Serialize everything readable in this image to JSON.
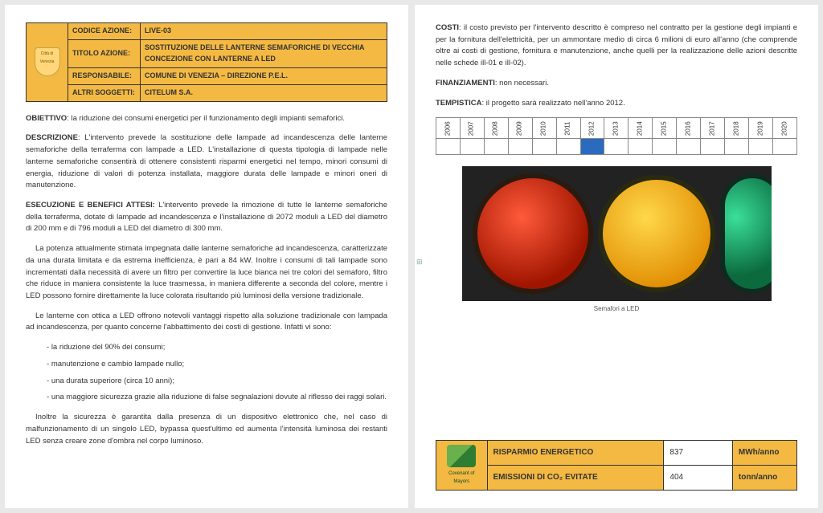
{
  "left": {
    "info": {
      "logo_alt": "Città di Venezia",
      "rows": [
        {
          "label": "CODICE AZIONE:",
          "value": "LIVE-03",
          "value_class": ""
        },
        {
          "label": "TITOLO AZIONE:",
          "value": "SOSTITUZIONE DELLE LANTERNE SEMAFORICHE DI VECCHIA CONCEZIONE CON LANTERNE A LED"
        },
        {
          "label": "RESPONSABILE:",
          "value": "COMUNE DI VENEZIA – DIREZIONE P.E.L."
        },
        {
          "label": "ALTRI SOGGETTI:",
          "value": "CITELUM S.A."
        }
      ]
    },
    "obiettivo_lead": "OBIETTIVO",
    "obiettivo": ": la riduzione dei consumi energetici per il funzionamento degli impianti semaforici.",
    "descrizione_lead": "DESCRIZIONE",
    "descrizione": ": L'intervento prevede la sostituzione delle lampade ad incandescenza delle lanterne semaforiche della terraferma con lampade a LED. L'installazione di questa tipologia di lampade nelle lanterne semaforiche consentirà di ottenere consistenti risparmi energetici nel tempo, minori consumi di energia, riduzione di valori di potenza installata, maggiore durata delle lampade e minori oneri di manutenzione.",
    "esecuzione_lead": "ESECUZIONE E BENEFICI ATTESI:",
    "esecuzione_p1": " L'intervento prevede la rimozione di tutte le lanterne semaforiche della terraferma, dotate di lampade ad incandescenza e l'installazione di 2072 moduli a LED del diametro di 200 mm e di 796 moduli a LED del diametro di 300 mm.",
    "esecuzione_p2": "La potenza attualmente stimata impegnata dalle lanterne semaforiche ad incandescenza, caratterizzate da una durata limitata e da estrema inefficienza, è pari a 84 kW. Inoltre i consumi di tali lampade sono incrementati dalla necessità di avere un filtro per convertire la luce bianca nei tre colori del semaforo, filtro che riduce in maniera consistente la luce trasmessa, in maniera differente a seconda del colore, mentre i LED possono fornire direttamente la luce colorata risultando più luminosi della versione tradizionale.",
    "esecuzione_p3": "Le lanterne con ottica a LED offrono notevoli vantaggi rispetto alla soluzione tradizionale con lampada ad incandescenza, per quanto concerne l'abbattimento dei costi di gestione. Infatti vi sono:",
    "bullets": [
      "la riduzione del 90% dei consumi;",
      "manutenzione e cambio lampade nullo;",
      "una durata superiore (circa 10 anni);",
      "una maggiore sicurezza grazie alla riduzione di false segnalazioni dovute al riflesso dei raggi solari."
    ],
    "after_bullets": "Inoltre la sicurezza è garantita dalla presenza di un dispositivo elettronico che, nel caso di malfunzionamento di un singolo LED, bypassa quest'ultimo ed aumenta l'intensità luminosa dei restanti LED senza creare zone d'ombra nel corpo luminoso."
  },
  "right": {
    "costi_lead": "COSTI",
    "costi": ": il costo previsto per l'intervento descritto è compreso nel contratto per la gestione degli impianti e per la fornitura dell'elettricità, per un ammontare medio di circa 6 milioni di euro all'anno (che comprende oltre ai costi di gestione, fornitura e manutenzione, anche quelli per la realizzazione delle azioni descritte nelle schede ill-01 e ill-02).",
    "finanziamenti_lead": "FINANZIAMENTI",
    "finanziamenti": ": non necessari.",
    "tempistica_lead": "TEMPISTICA",
    "tempistica": ": il progetto sarà realizzato nell'anno 2012.",
    "timeline": {
      "years": [
        "2006",
        "2007",
        "2008",
        "2009",
        "2010",
        "2011",
        "2012",
        "2013",
        "2014",
        "2015",
        "2016",
        "2017",
        "2018",
        "2019",
        "2020"
      ],
      "highlight_index": 6,
      "highlight_color": "#2a6bbf",
      "border_color": "#888888"
    },
    "photo_caption": "Semafori a LED",
    "photo": {
      "background": "#222222",
      "lamps": [
        {
          "type": "red",
          "color_inner": "#ff5a3a",
          "color_outer": "#a01500"
        },
        {
          "type": "yellow",
          "color_inner": "#ffd84a",
          "color_outer": "#e08a00"
        },
        {
          "type": "green",
          "color_inner": "#3adf9a",
          "color_outer": "#0b6a3e"
        }
      ]
    },
    "results": {
      "logo_alt": "Covenant of Mayors",
      "rows": [
        {
          "label": "RISPARMIO ENERGETICO",
          "value": "837",
          "unit": "MWh/anno"
        },
        {
          "label": "EMISSIONI DI CO₂ EVITATE",
          "value": "404",
          "unit": "tonn/anno"
        }
      ],
      "label_bg": "#f4b942",
      "value_bg": "#ffffff"
    }
  }
}
